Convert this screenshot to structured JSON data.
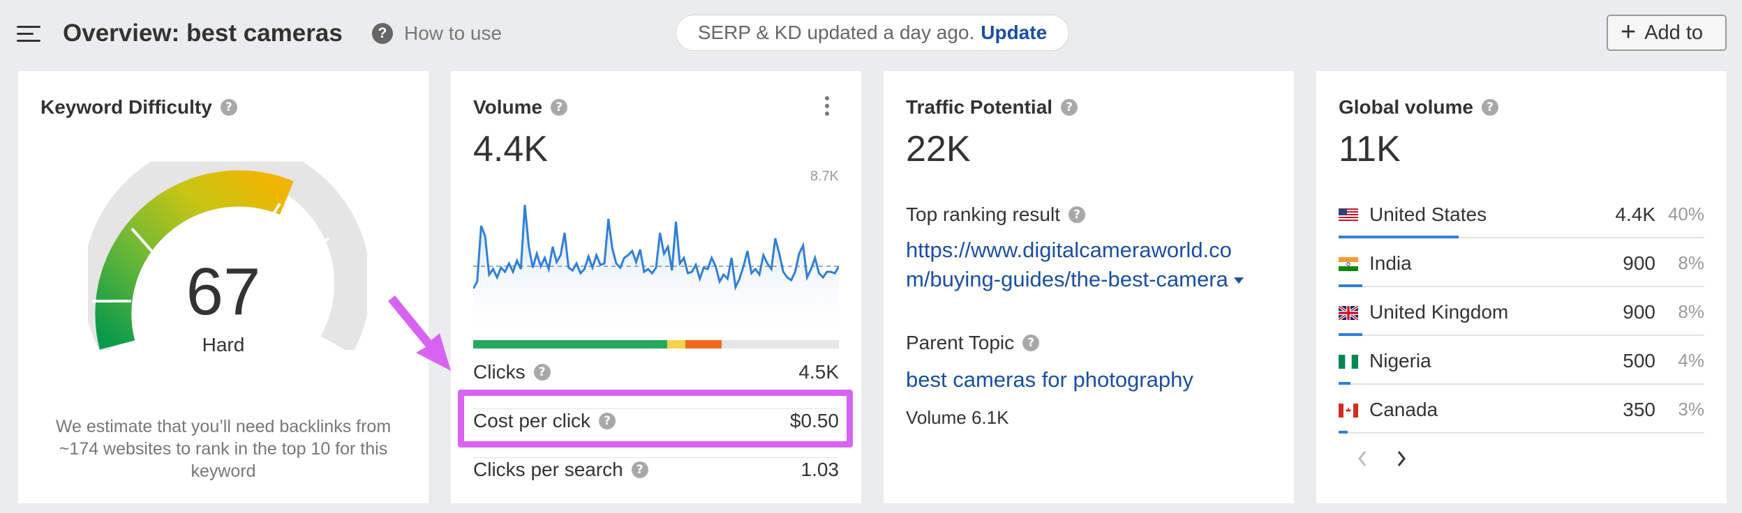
{
  "header": {
    "menu_icon": "hamburger-menu-icon",
    "title": "Overview: best cameras",
    "how_to_use": "How to use",
    "serp_status": "SERP & KD updated a day ago.",
    "update_link": "Update",
    "add_to": "Add to"
  },
  "kd": {
    "title": "Keyword Difficulty",
    "value": "67",
    "level": "Hard",
    "description": "We estimate that you’ll need backlinks from ~174 websites to rank in the top 10 for this keyword"
  },
  "volume": {
    "title": "Volume",
    "value": "4.4K",
    "chart_max": "8.7K",
    "clicks_label": "Clicks",
    "clicks_value": "4.5K",
    "cpc_label": "Cost per click",
    "cpc_value": "$0.50",
    "cps_label": "Clicks per search",
    "cps_value": "1.03",
    "click_distribution": [
      {
        "share": 0.53,
        "color": "#27a85c"
      },
      {
        "share": 0.05,
        "color": "#f2d34a"
      },
      {
        "share": 0.1,
        "color": "#f26b1d"
      }
    ]
  },
  "traffic": {
    "title": "Traffic Potential",
    "value": "22K",
    "top_ranking_label": "Top ranking result",
    "top_ranking_url_line1": "https://www.digitalcameraworld.co",
    "top_ranking_url_line2": "m/buying-guides/the-best-camera",
    "parent_topic_label": "Parent Topic",
    "parent_topic": "best cameras for photography",
    "parent_volume": "Volume 6.1K"
  },
  "global": {
    "title": "Global volume",
    "value": "11K",
    "countries": [
      {
        "name": "United States",
        "volume": "4.4K",
        "pct": "40%",
        "share": 0.4,
        "flag": "us-flag-icon"
      },
      {
        "name": "India",
        "volume": "900",
        "pct": "8%",
        "share": 0.08,
        "flag": "india-flag-icon"
      },
      {
        "name": "United Kingdom",
        "volume": "900",
        "pct": "8%",
        "share": 0.08,
        "flag": "uk-flag-icon"
      },
      {
        "name": "Nigeria",
        "volume": "500",
        "pct": "4%",
        "share": 0.04,
        "flag": "nigeria-flag-icon"
      },
      {
        "name": "Canada",
        "volume": "350",
        "pct": "3%",
        "share": 0.03,
        "flag": "canada-flag-icon"
      }
    ]
  },
  "colors": {
    "link": "#1a4fa0",
    "highlight": "#d863f2",
    "chart_line": "#2f7fd6"
  }
}
